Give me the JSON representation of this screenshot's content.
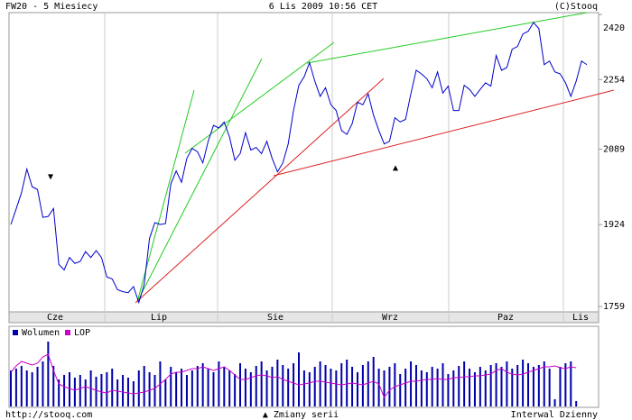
{
  "chart_data": {
    "type": "line",
    "title": "FW20 - 5 Miesiecy",
    "subtitle": "6 Lis 2009 10:56 CET",
    "copyright": "(C)Stooq",
    "footer_left": "http://stooq.com",
    "footer_center": "▲ Zmiany serii",
    "footer_right": "Interwal Dzienny",
    "month_labels": [
      "Cze",
      "Lip",
      "Sie",
      "Wrz",
      "Paz",
      "Lis"
    ],
    "log_scale": true,
    "ylim": [
      1749,
      2425
    ],
    "yticks": [
      1759,
      1924,
      2089,
      2254,
      2420
    ],
    "series": [
      {
        "name": "FW20",
        "color": "#0000cc",
        "values": [
          1924,
          1957,
          1992,
          2044,
          2005,
          1999,
          1939,
          1941,
          1958,
          1842,
          1831,
          1856,
          1844,
          1848,
          1868,
          1856,
          1870,
          1856,
          1817,
          1813,
          1792,
          1788,
          1786,
          1798,
          1767,
          1802,
          1895,
          1928,
          1924,
          1926,
          2011,
          2040,
          2015,
          2068,
          2091,
          2083,
          2058,
          2107,
          2144,
          2138,
          2152,
          2117,
          2064,
          2079,
          2127,
          2087,
          2093,
          2079,
          2107,
          2068,
          2038,
          2058,
          2101,
          2179,
          2240,
          2261,
          2296,
          2250,
          2213,
          2234,
          2193,
          2179,
          2132,
          2123,
          2148,
          2199,
          2193,
          2219,
          2168,
          2132,
          2101,
          2107,
          2162,
          2152,
          2158,
          2219,
          2277,
          2268,
          2256,
          2234,
          2273,
          2221,
          2238,
          2179,
          2179,
          2240,
          2230,
          2213,
          2230,
          2246,
          2238,
          2314,
          2277,
          2284,
          2330,
          2337,
          2369,
          2376,
          2399,
          2383,
          2291,
          2300,
          2273,
          2268,
          2246,
          2213,
          2250,
          2300,
          2291
        ]
      },
      {
        "name": "Wolumen",
        "color": "#0000aa",
        "values": [
          40,
          42,
          45,
          40,
          38,
          44,
          50,
          72,
          45,
          30,
          35,
          38,
          32,
          35,
          30,
          40,
          33,
          36,
          38,
          42,
          30,
          35,
          32,
          28,
          40,
          45,
          38,
          35,
          50,
          30,
          44,
          38,
          42,
          35,
          40,
          45,
          48,
          42,
          38,
          50,
          44,
          40,
          36,
          48,
          42,
          38,
          45,
          50,
          40,
          44,
          52,
          46,
          42,
          48,
          60,
          40,
          38,
          44,
          50,
          46,
          42,
          40,
          48,
          52,
          44,
          38,
          46,
          50,
          55,
          42,
          40,
          44,
          48,
          36,
          42,
          50,
          46,
          40,
          38,
          44,
          42,
          48,
          36,
          40,
          45,
          50,
          42,
          38,
          44,
          40,
          46,
          48,
          44,
          50,
          42,
          46,
          52,
          48,
          44,
          46,
          50,
          42,
          8,
          44,
          48,
          50,
          6
        ]
      },
      {
        "name": "LOP",
        "color": "#cc00cc",
        "values": [
          38,
          45,
          50,
          48,
          46,
          48,
          55,
          58,
          40,
          25,
          22,
          20,
          18,
          20,
          22,
          20,
          18,
          16,
          15,
          18,
          17,
          16,
          15,
          14,
          15,
          16,
          18,
          20,
          25,
          30,
          36,
          38,
          38,
          40,
          42,
          42,
          44,
          42,
          40,
          42,
          44,
          40,
          35,
          30,
          30,
          32,
          34,
          35,
          34,
          32,
          33,
          30,
          28,
          26,
          24,
          25,
          26,
          28,
          28,
          27,
          26,
          25,
          24,
          25,
          26,
          25,
          24,
          26,
          28,
          25,
          10,
          18,
          22,
          24,
          26,
          28,
          28,
          29,
          30,
          30,
          31,
          30,
          30,
          32,
          32,
          33,
          33,
          34,
          34,
          35,
          36,
          40,
          42,
          38,
          36,
          35,
          36,
          38,
          40,
          42,
          44,
          44,
          45,
          43,
          42,
          44,
          43
        ]
      }
    ]
  }
}
